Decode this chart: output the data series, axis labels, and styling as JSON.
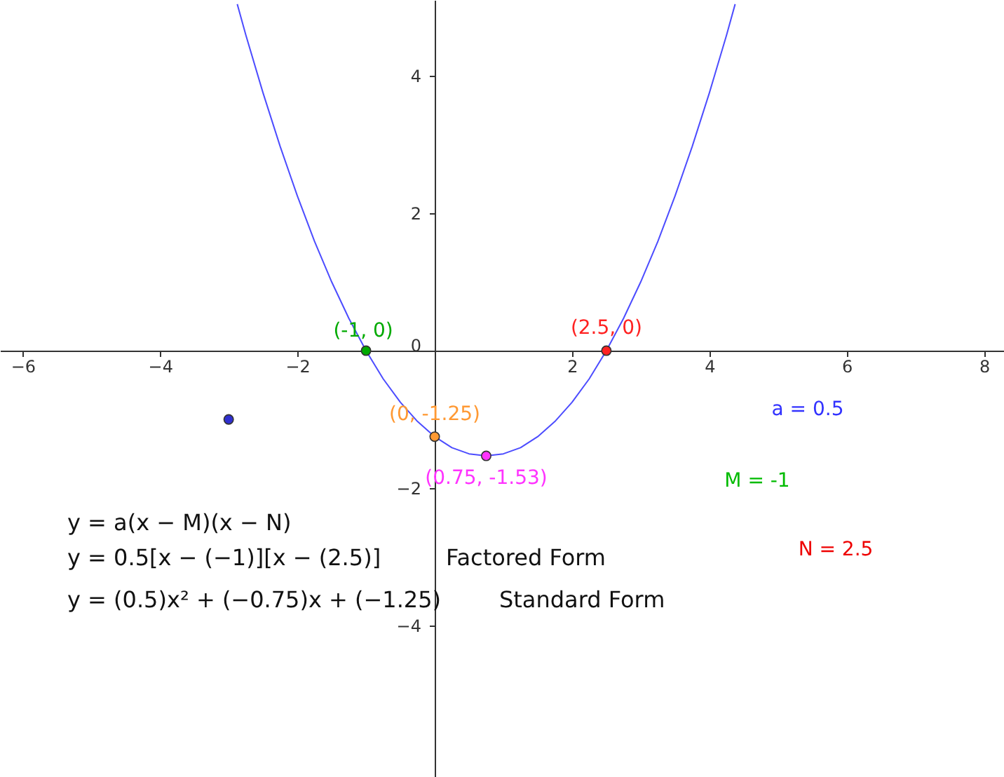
{
  "chart_data": {
    "type": "line",
    "xlim": [
      -6.33,
      8.29
    ],
    "ylim": [
      -6.2,
      5.1
    ],
    "xticks": [
      -6,
      -4,
      -2,
      2,
      4,
      6,
      8
    ],
    "yticks": [
      -4,
      -2,
      0,
      2,
      4
    ],
    "grid": false,
    "line_style": "solid",
    "marker": "circle",
    "series": [
      {
        "type": "line",
        "color": "#4c4cff",
        "marker": "none",
        "x": [
          -2.875,
          -2.75,
          -2.5,
          -2.25,
          -2,
          -1.75,
          -1.5,
          -1.25,
          -1,
          -0.75,
          -0.5,
          -0.25,
          0,
          0.25,
          0.5,
          0.75,
          1,
          1.25,
          1.5,
          1.75,
          2,
          2.25,
          2.5,
          2.75,
          3,
          3.25,
          3.5,
          3.75,
          4,
          4.25,
          4.375
        ],
        "values": [
          5.04,
          4.59,
          3.75,
          2.97,
          2.25,
          1.59,
          1,
          0.47,
          0,
          -0.41,
          -0.75,
          -1.03,
          -1.25,
          -1.41,
          -1.5,
          -1.53,
          -1.5,
          -1.41,
          -1.25,
          -1.03,
          -0.75,
          -0.41,
          0,
          0.47,
          1,
          1.59,
          2.25,
          2.97,
          3.75,
          4.59,
          5.04
        ]
      },
      {
        "type": "scatter",
        "color": "#00aa00",
        "x": [
          -1
        ],
        "values": [
          0
        ]
      },
      {
        "type": "scatter",
        "color": "#ff9933",
        "x": [
          0
        ],
        "values": [
          -1.25
        ]
      },
      {
        "type": "scatter",
        "color": "#ff33ff",
        "x": [
          0.75
        ],
        "values": [
          -1.53
        ]
      },
      {
        "type": "scatter",
        "color": "#ff2222",
        "x": [
          2.5
        ],
        "values": [
          0
        ]
      },
      {
        "type": "scatter",
        "color": "#2f2fd0",
        "x": [
          -3
        ],
        "values": [
          -1
        ]
      }
    ],
    "annotations": [
      {
        "text": "(-1, 0)",
        "x": -1,
        "y": 0
      },
      {
        "text": "(2.5, 0)",
        "x": 2.5,
        "y": 0
      },
      {
        "text": "(0, -1.25)",
        "x": 0,
        "y": -1.25
      },
      {
        "text": "(0.75, -1.53)",
        "x": 0.75,
        "y": -1.53
      },
      "a = 0.5",
      "M = -1",
      "y = a(x − M)(x − N)",
      "N = 2.5",
      "y = 0.5[x − (−1)][x − (2.5)]",
      "Factored Form",
      "y = (0.5)x² + (−0.75)x + (−1.25)",
      "Standard Form"
    ]
  }
}
